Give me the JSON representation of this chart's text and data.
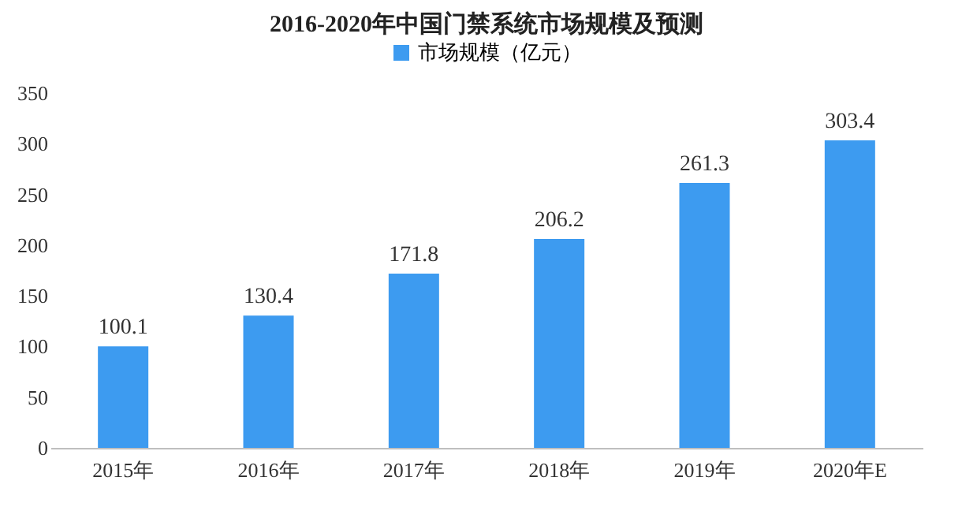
{
  "chart_data": {
    "type": "bar",
    "title": "2016-2020年中国门禁系统市场规模及预测",
    "categories": [
      "2015年",
      "2016年",
      "2017年",
      "2018年",
      "2019年",
      "2020年E"
    ],
    "series": [
      {
        "name": "市场规模（亿元）",
        "color": "#3d9bf0",
        "values": [
          100.1,
          130.4,
          171.8,
          206.2,
          261.3,
          303.4
        ]
      }
    ],
    "ylim": [
      0,
      350
    ],
    "yticks": [
      0,
      50,
      100,
      150,
      200,
      250,
      300,
      350
    ],
    "grid": false,
    "legend": "top",
    "data_labels": true
  }
}
